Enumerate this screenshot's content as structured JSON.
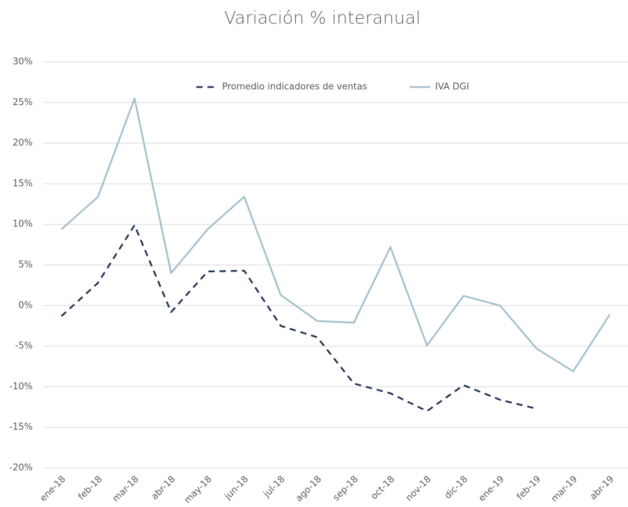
{
  "chart_data": {
    "type": "line",
    "title": "Variación % interanual",
    "categories": [
      "ene-18",
      "feb-18",
      "mar-18",
      "abr-18",
      "may-18",
      "jun-18",
      "jul-18",
      "ago-18",
      "sep-18",
      "oct-18",
      "nov-18",
      "dic-18",
      "ene-19",
      "feb-19",
      "mar-19",
      "abr-19"
    ],
    "series": [
      {
        "name": "Promedio indicadores de ventas",
        "color": "#1f3050",
        "line_style": "dashed",
        "values": [
          -1.3,
          2.8,
          9.9,
          -0.8,
          4.2,
          4.3,
          -2.5,
          -3.9,
          -9.6,
          -10.8,
          -13.0,
          -9.8,
          -11.6,
          -12.7,
          null,
          null
        ]
      },
      {
        "name": "IVA DGI",
        "color": "#a3bfcc",
        "line_style": "solid",
        "values": [
          9.4,
          13.4,
          25.5,
          4.0,
          9.4,
          13.4,
          1.3,
          -1.9,
          -2.1,
          7.2,
          -4.9,
          1.2,
          0.0,
          -5.3,
          -8.1,
          -1.1
        ]
      }
    ],
    "ylim": [
      -20,
      30
    ],
    "yticks": [
      {
        "value": -20,
        "label": "-20%"
      },
      {
        "value": -15,
        "label": "-15%"
      },
      {
        "value": -10,
        "label": "-10%"
      },
      {
        "value": -5,
        "label": "-5%"
      },
      {
        "value": 0,
        "label": "0%"
      },
      {
        "value": 5,
        "label": "5%"
      },
      {
        "value": 10,
        "label": "10%"
      },
      {
        "value": 15,
        "label": "15%"
      },
      {
        "value": 20,
        "label": "20%"
      },
      {
        "value": 25,
        "label": "25%"
      },
      {
        "value": 30,
        "label": "30%"
      }
    ],
    "grid": true,
    "legend": "top"
  }
}
